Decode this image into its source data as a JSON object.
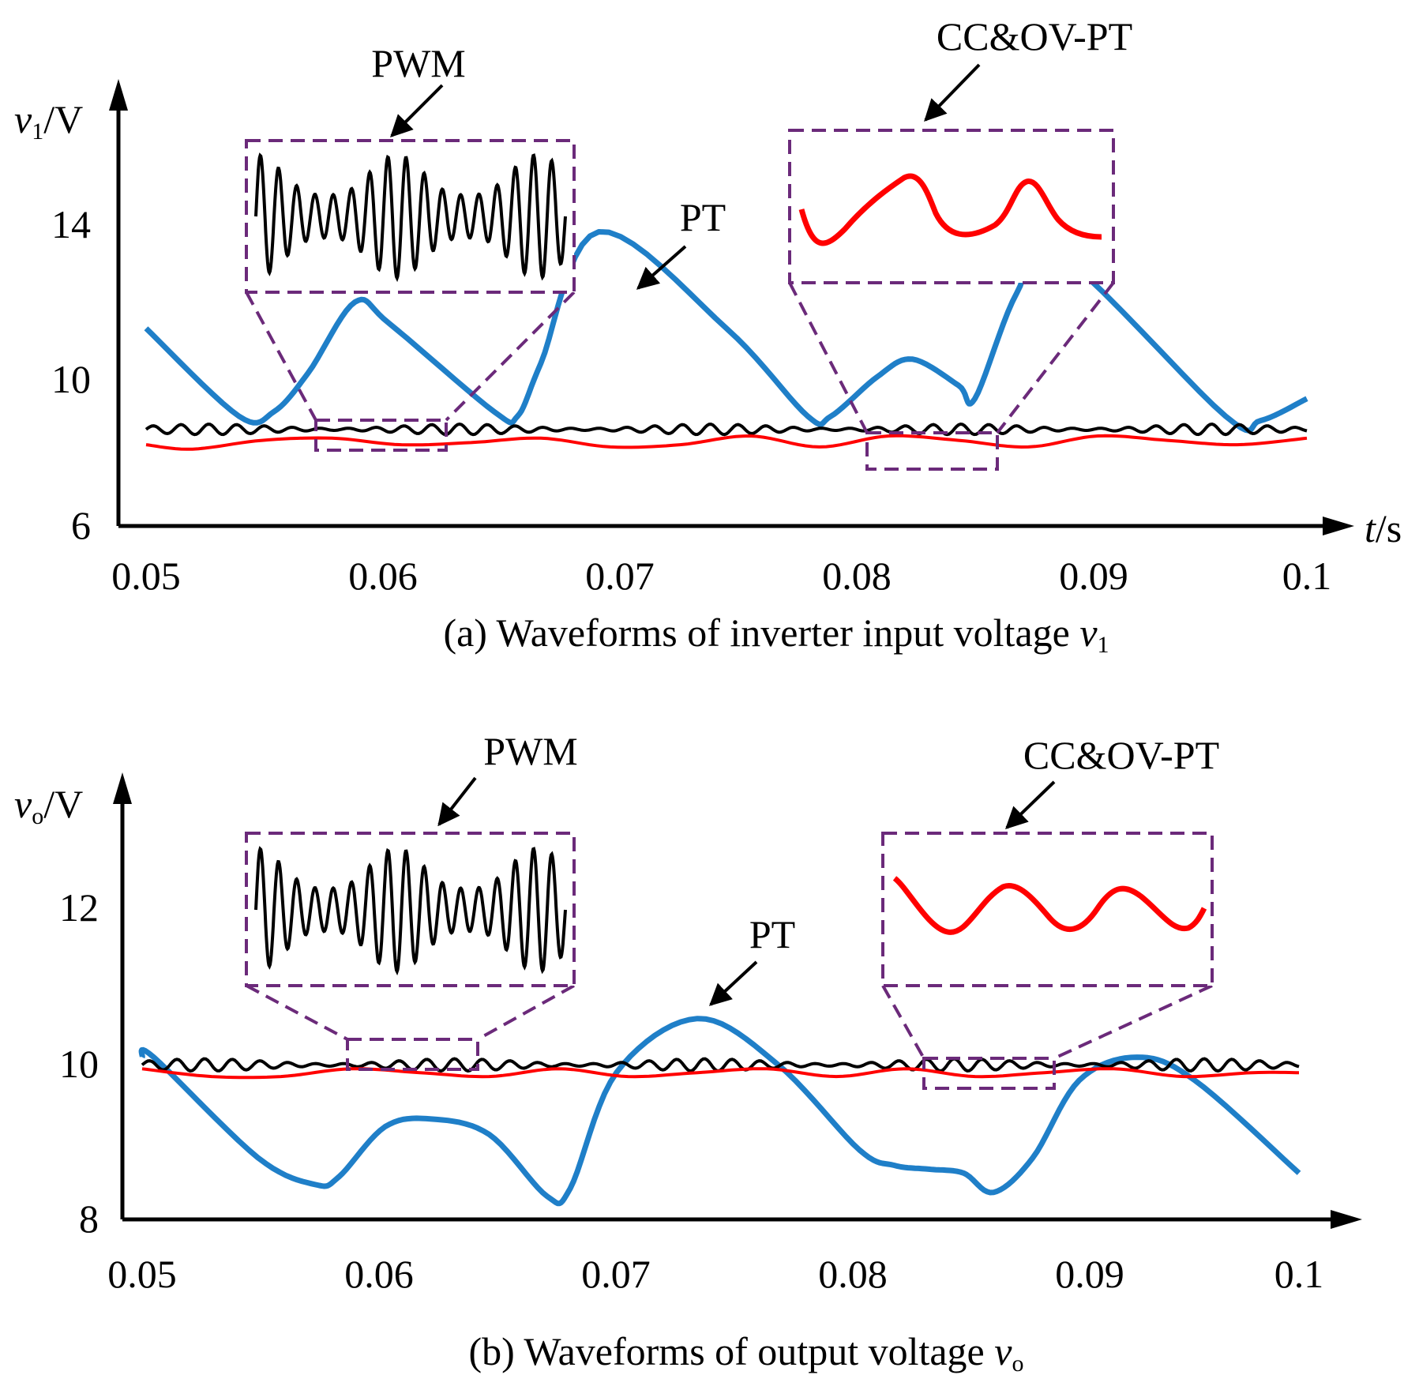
{
  "chart_data": [
    {
      "type": "line",
      "caption": {
        "prefix": "(a) Waveforms of inverter input voltage ",
        "var": "v",
        "sub": "1"
      },
      "ylabel": {
        "var": "v",
        "sub": "1",
        "unit": "/V"
      },
      "xlabel": {
        "var": "t",
        "unit": "/s"
      },
      "xlim": [
        0.05,
        0.1
      ],
      "ylim": [
        6,
        16
      ],
      "x_ticks": [
        "0.05",
        "0.06",
        "0.07",
        "0.08",
        "0.09",
        "0.1"
      ],
      "y_ticks": [
        "6",
        "10",
        "14"
      ],
      "annotations": {
        "pwm": "PWM",
        "pt": "PT",
        "ccov": "CC&OV-PT"
      },
      "colors": {
        "pt": "#1f7fc8",
        "pwm": "#000000",
        "ccov": "#ff0000",
        "inset_border": "#6b2a7a"
      },
      "series": [
        {
          "key": "pt",
          "x": [
            0.05,
            0.054,
            0.0555,
            0.057,
            0.059,
            0.0605,
            0.065,
            0.066,
            0.067,
            0.0695,
            0.075,
            0.0785,
            0.0795,
            0.0815,
            0.083,
            0.085,
            0.0857,
            0.0875,
            0.0893,
            0.0965,
            0.098,
            0.1
          ],
          "y": [
            10.5,
            8.5,
            8.6,
            9.5,
            11.1,
            10.6,
            8.6,
            8.5,
            9.7,
            12.7,
            10.5,
            8.5,
            8.5,
            9.4,
            9.8,
            9.2,
            8.9,
            11.3,
            12.2,
            8.5,
            8.4,
            8.9
          ]
        },
        {
          "key": "pwm",
          "mean": 8.2,
          "amplitude": 0.12,
          "period": 0.0012,
          "x_range": [
            0.05,
            0.1
          ]
        },
        {
          "key": "ccov",
          "x": [
            0.05,
            0.052,
            0.055,
            0.058,
            0.061,
            0.064,
            0.067,
            0.07,
            0.073,
            0.076,
            0.079,
            0.082,
            0.085,
            0.088,
            0.091,
            0.094,
            0.097,
            0.1
          ],
          "y": [
            7.85,
            7.75,
            7.95,
            8.0,
            7.85,
            7.9,
            8.0,
            7.8,
            7.85,
            8.05,
            7.8,
            8.05,
            7.95,
            7.8,
            8.05,
            7.95,
            7.85,
            8.0
          ]
        }
      ]
    },
    {
      "type": "line",
      "caption": {
        "prefix": "(b) Waveforms of output voltage ",
        "var": "v",
        "sub": "o"
      },
      "ylabel": {
        "var": "v",
        "sub": "o",
        "unit": "/V"
      },
      "xlabel": {
        "var": "",
        "unit": ""
      },
      "xlim": [
        0.05,
        0.1
      ],
      "ylim": [
        8,
        13
      ],
      "x_ticks": [
        "0.05",
        "0.06",
        "0.07",
        "0.08",
        "0.09",
        "0.1"
      ],
      "y_ticks": [
        "8",
        "10",
        "12"
      ],
      "annotations": {
        "pwm": "PWM",
        "pt": "PT",
        "ccov": "CC&OV-PT"
      },
      "colors": {
        "pt": "#1f7fc8",
        "pwm": "#000000",
        "ccov": "#ff0000",
        "inset_border": "#6b2a7a"
      },
      "series": [
        {
          "key": "pt",
          "x": [
            0.05,
            0.0505,
            0.055,
            0.0575,
            0.0585,
            0.0605,
            0.0625,
            0.065,
            0.0675,
            0.0685,
            0.0705,
            0.074,
            0.0775,
            0.081,
            0.0825,
            0.084,
            0.0855,
            0.0868,
            0.0885,
            0.0905,
            0.093,
            0.0955,
            0.1
          ],
          "y": [
            10.1,
            10.1,
            8.8,
            8.45,
            8.55,
            9.2,
            9.3,
            9.1,
            8.3,
            8.4,
            9.9,
            10.6,
            10.0,
            8.9,
            8.7,
            8.65,
            8.6,
            8.35,
            8.8,
            9.8,
            10.1,
            9.8,
            8.6
          ]
        },
        {
          "key": "pwm",
          "mean": 10.0,
          "amplitude": 0.08,
          "period": 0.0012,
          "x_range": [
            0.05,
            0.1
          ]
        },
        {
          "key": "ccov",
          "x": [
            0.05,
            0.053,
            0.056,
            0.059,
            0.062,
            0.065,
            0.068,
            0.071,
            0.074,
            0.077,
            0.08,
            0.083,
            0.086,
            0.089,
            0.092,
            0.095,
            0.098,
            0.1
          ],
          "y": [
            9.95,
            9.85,
            9.85,
            9.95,
            9.9,
            9.85,
            9.95,
            9.85,
            9.9,
            9.95,
            9.85,
            9.95,
            9.85,
            9.9,
            9.95,
            9.85,
            9.9,
            9.9
          ]
        }
      ]
    }
  ]
}
